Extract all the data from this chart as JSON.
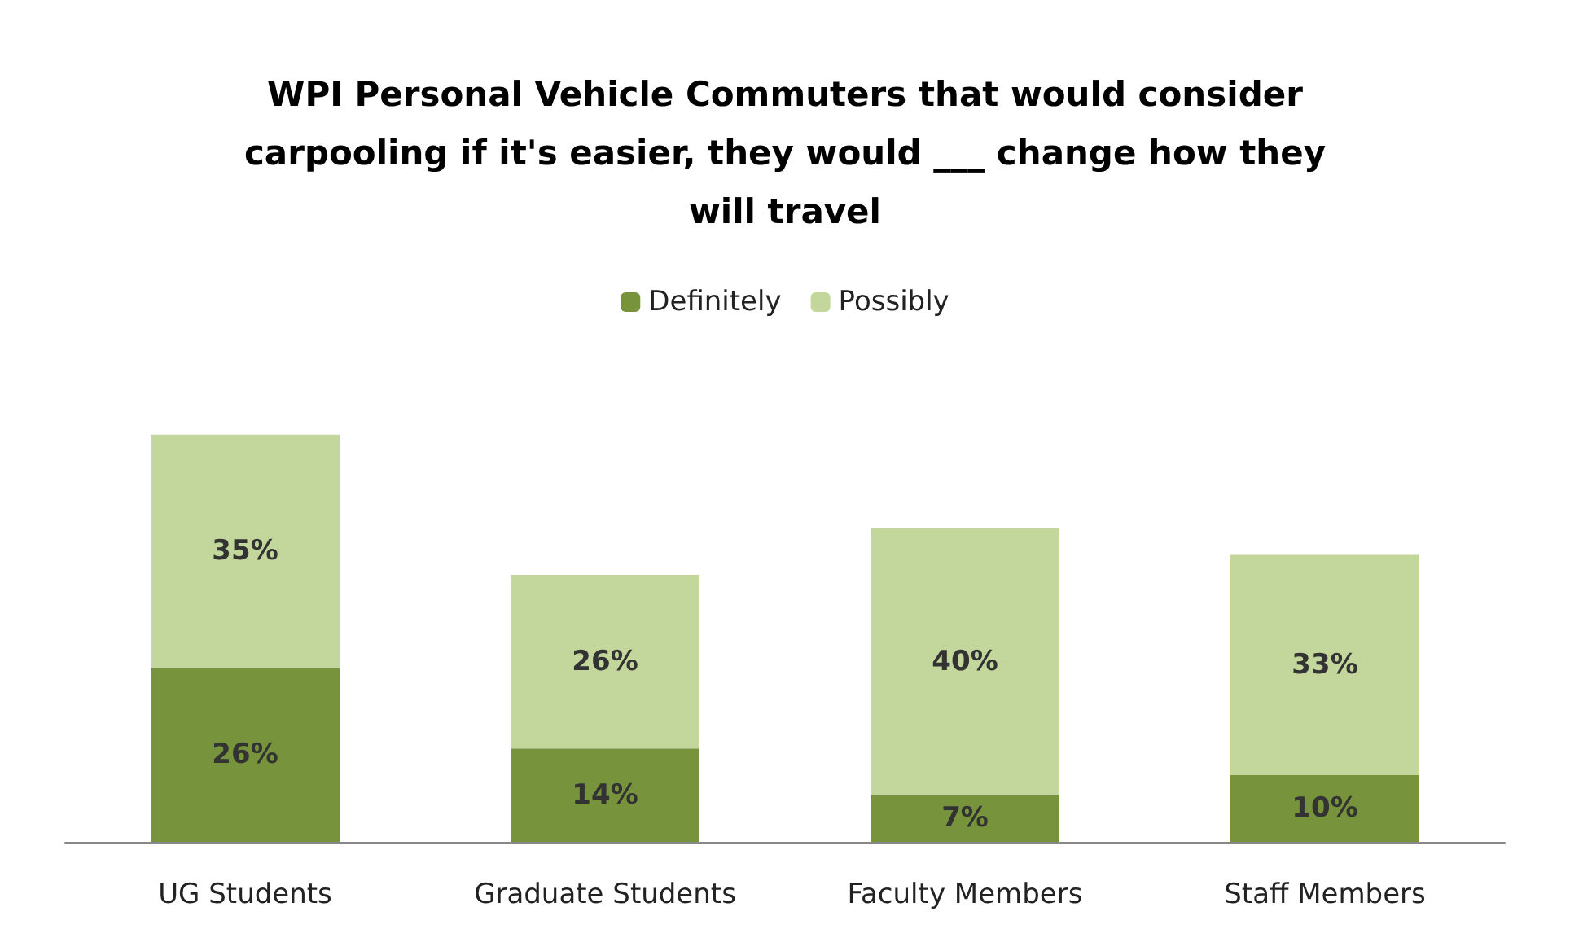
{
  "chart_data": {
    "type": "bar",
    "title": "WPI Personal Vehicle Commuters that would consider carpooling if it's easier, they would ___ change how they will travel",
    "categories": [
      "UG Students",
      "Graduate Students",
      "Faculty Members",
      "Staff Members"
    ],
    "stacked": true,
    "legend": "top",
    "grid": false,
    "series": [
      {
        "name": "Definitely",
        "color": "#77933c",
        "values": [
          26,
          14,
          7,
          10
        ],
        "value_labels": [
          "26%",
          "14%",
          "7%",
          "10%"
        ]
      },
      {
        "name": "Possibly",
        "color": "#c3d69b",
        "values": [
          35,
          26,
          40,
          33
        ],
        "value_labels": [
          "35%",
          "26%",
          "40%",
          "33%"
        ]
      }
    ]
  }
}
